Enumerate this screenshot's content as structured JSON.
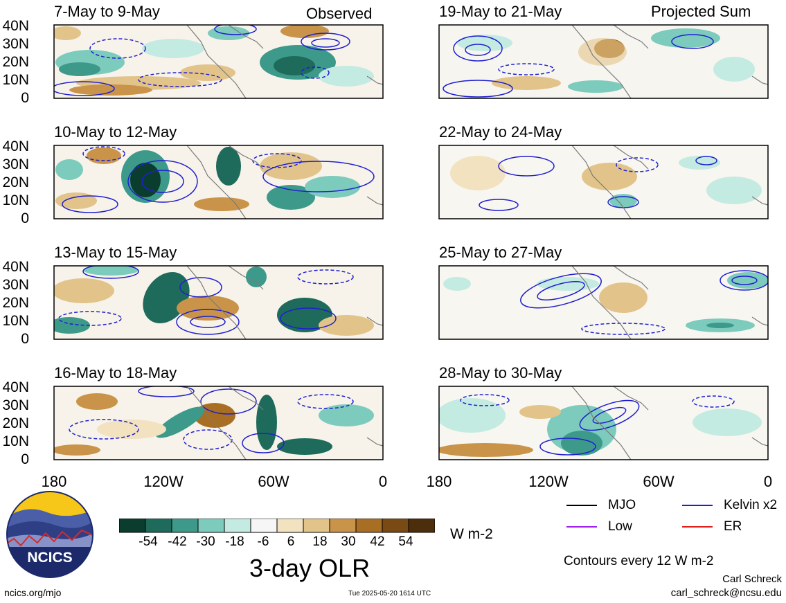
{
  "titles": {
    "observed": "Observed",
    "projected": "Projected Sum"
  },
  "panels_left": [
    {
      "label": "7-May to 9-May"
    },
    {
      "label": "10-May to 12-May"
    },
    {
      "label": "13-May to 15-May"
    },
    {
      "label": "16-May to 18-May"
    }
  ],
  "panels_right": [
    {
      "label": "19-May to 21-May"
    },
    {
      "label": "22-May to 24-May"
    },
    {
      "label": "25-May to 27-May"
    },
    {
      "label": "28-May to 30-May"
    }
  ],
  "y_ticks": [
    "40N",
    "30N",
    "20N",
    "10N",
    "0"
  ],
  "x_ticks": [
    "180",
    "120W",
    "60W",
    "0"
  ],
  "colorbar": {
    "colors": [
      "#0b3d2e",
      "#1f6b5b",
      "#3d9a8a",
      "#7ccbbc",
      "#c4ebe2",
      "#f6f6f6",
      "#f2e2c0",
      "#e2c48a",
      "#c99449",
      "#a86e24",
      "#7a4a14",
      "#4d2e0c"
    ],
    "labels": [
      "-54",
      "-42",
      "-30",
      "-18",
      "-6",
      "6",
      "18",
      "30",
      "42",
      "54"
    ],
    "units": "W m-2",
    "title": "3-day OLR"
  },
  "legend": {
    "items": [
      {
        "label": "MJO",
        "color": "#000000"
      },
      {
        "label": "Kelvin x2",
        "color": "#1f1fd0"
      },
      {
        "label": "Low",
        "color": "#a020f0"
      },
      {
        "label": "ER",
        "color": "#e0201a"
      }
    ],
    "contours_note": "Contours every 12 W m-2"
  },
  "logo": {
    "text": "NCICS"
  },
  "footer": {
    "url": "ncics.org/mjo",
    "timestamp": "Tue 2025-05-20 1614 UTC",
    "author": "Carl Schreck",
    "email": "carl_schreck@ncsu.edu"
  }
}
